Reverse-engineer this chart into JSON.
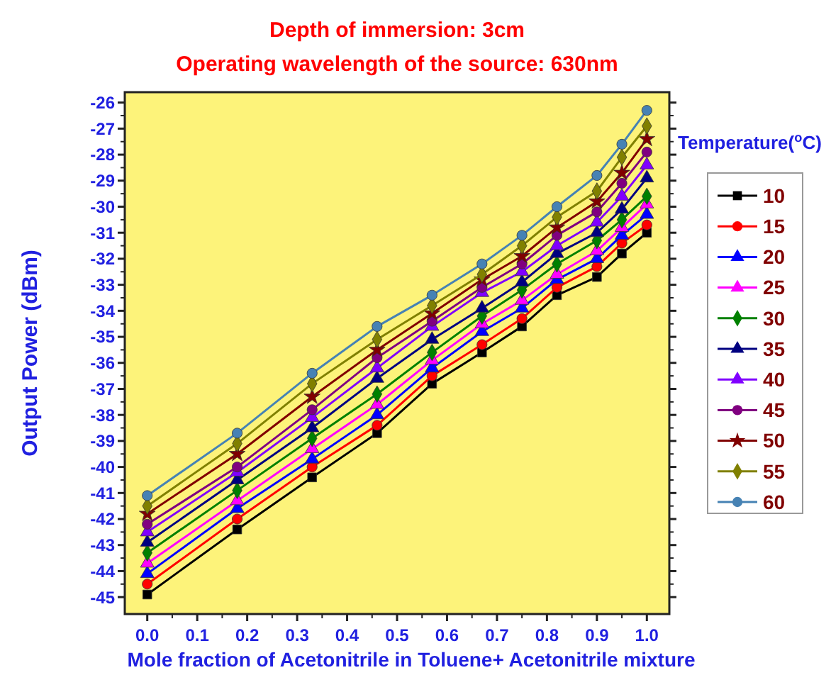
{
  "chart_data": {
    "type": "line",
    "title": "Depth of immersion: 3cm",
    "subtitle": "Operating wavelength of the source: 630nm",
    "xlabel": "Mole fraction of Acetonitrile in Toluene+ Acetonitrile mixture",
    "ylabel": "Output Power (dBm)",
    "legend_title": "Temperature($^{o}$C)",
    "legend": "right",
    "grid": false,
    "x": [
      0,
      0.18,
      0.33,
      0.46,
      0.57,
      0.67,
      0.75,
      0.82,
      0.9,
      0.95,
      1.0
    ],
    "xlim": [
      -0.045,
      1.045
    ],
    "xticks": [
      {
        "value": 0,
        "label": "0.0"
      },
      0.1,
      0.2,
      0.3,
      0.4,
      0.5,
      0.6,
      0.7,
      0.8,
      0.9,
      {
        "value": 1,
        "label": "1.0"
      }
    ],
    "ylim": [
      -45.65,
      -25.6
    ],
    "yticks": [
      -45,
      -44,
      -43,
      -42,
      -41,
      -40,
      -39,
      -38,
      -37,
      -36,
      -35,
      -34,
      -33,
      -32,
      -31,
      -30,
      -29,
      -28,
      -27,
      -26
    ],
    "series": [
      {
        "name": "10",
        "color": "#000000",
        "marker": "square",
        "values": [
          -44.9,
          -42.4,
          -40.4,
          -38.7,
          -36.8,
          -35.6,
          -34.6,
          -33.4,
          -32.7,
          -31.8,
          -31.0
        ]
      },
      {
        "name": "15",
        "color": "#ff0000",
        "marker": "circle",
        "values": [
          -44.5,
          -42.0,
          -40.0,
          -38.4,
          -36.5,
          -35.3,
          -34.3,
          -33.1,
          -32.3,
          -31.4,
          -30.7
        ]
      },
      {
        "name": "20",
        "color": "#0000ff",
        "marker": "triangle",
        "values": [
          -44.1,
          -41.6,
          -39.7,
          -38.0,
          -36.2,
          -34.8,
          -33.9,
          -32.8,
          -32.0,
          -31.1,
          -30.3
        ]
      },
      {
        "name": "25",
        "color": "#ff00ff",
        "marker": "triangle",
        "values": [
          -43.7,
          -41.3,
          -39.3,
          -37.6,
          -35.9,
          -34.5,
          -33.6,
          -32.6,
          -31.7,
          -30.8,
          -29.9
        ]
      },
      {
        "name": "30",
        "color": "#008000",
        "marker": "diamond",
        "values": [
          -43.3,
          -40.9,
          -38.9,
          -37.2,
          -35.6,
          -34.2,
          -33.2,
          -32.2,
          -31.3,
          -30.5,
          -29.6
        ]
      },
      {
        "name": "35",
        "color": "#000080",
        "marker": "triangle",
        "values": [
          -42.9,
          -40.5,
          -38.5,
          -36.6,
          -35.1,
          -33.9,
          -32.9,
          -31.8,
          -31.0,
          -30.1,
          -28.9
        ]
      },
      {
        "name": "40",
        "color": "#8000ff",
        "marker": "triangle",
        "values": [
          -42.5,
          -40.2,
          -38.1,
          -36.2,
          -34.6,
          -33.3,
          -32.5,
          -31.5,
          -30.6,
          -29.6,
          -28.4
        ]
      },
      {
        "name": "45",
        "color": "#800080",
        "marker": "circle",
        "values": [
          -42.2,
          -40.0,
          -37.8,
          -35.8,
          -34.4,
          -33.1,
          -32.2,
          -31.1,
          -30.2,
          -29.1,
          -27.9
        ]
      },
      {
        "name": "50",
        "color": "#800000",
        "marker": "star",
        "values": [
          -41.8,
          -39.5,
          -37.3,
          -35.5,
          -34.1,
          -32.8,
          -31.9,
          -30.8,
          -29.8,
          -28.7,
          -27.4
        ]
      },
      {
        "name": "55",
        "color": "#808000",
        "marker": "diamond",
        "values": [
          -41.5,
          -39.1,
          -36.8,
          -35.1,
          -33.8,
          -32.6,
          -31.5,
          -30.4,
          -29.4,
          -28.1,
          -26.9
        ]
      },
      {
        "name": "60",
        "color": "#4682b4",
        "marker": "circle",
        "values": [
          -41.1,
          -38.7,
          -36.4,
          -34.6,
          -33.4,
          -32.2,
          -31.1,
          -30.0,
          -28.8,
          -27.6,
          -26.3
        ]
      }
    ]
  }
}
